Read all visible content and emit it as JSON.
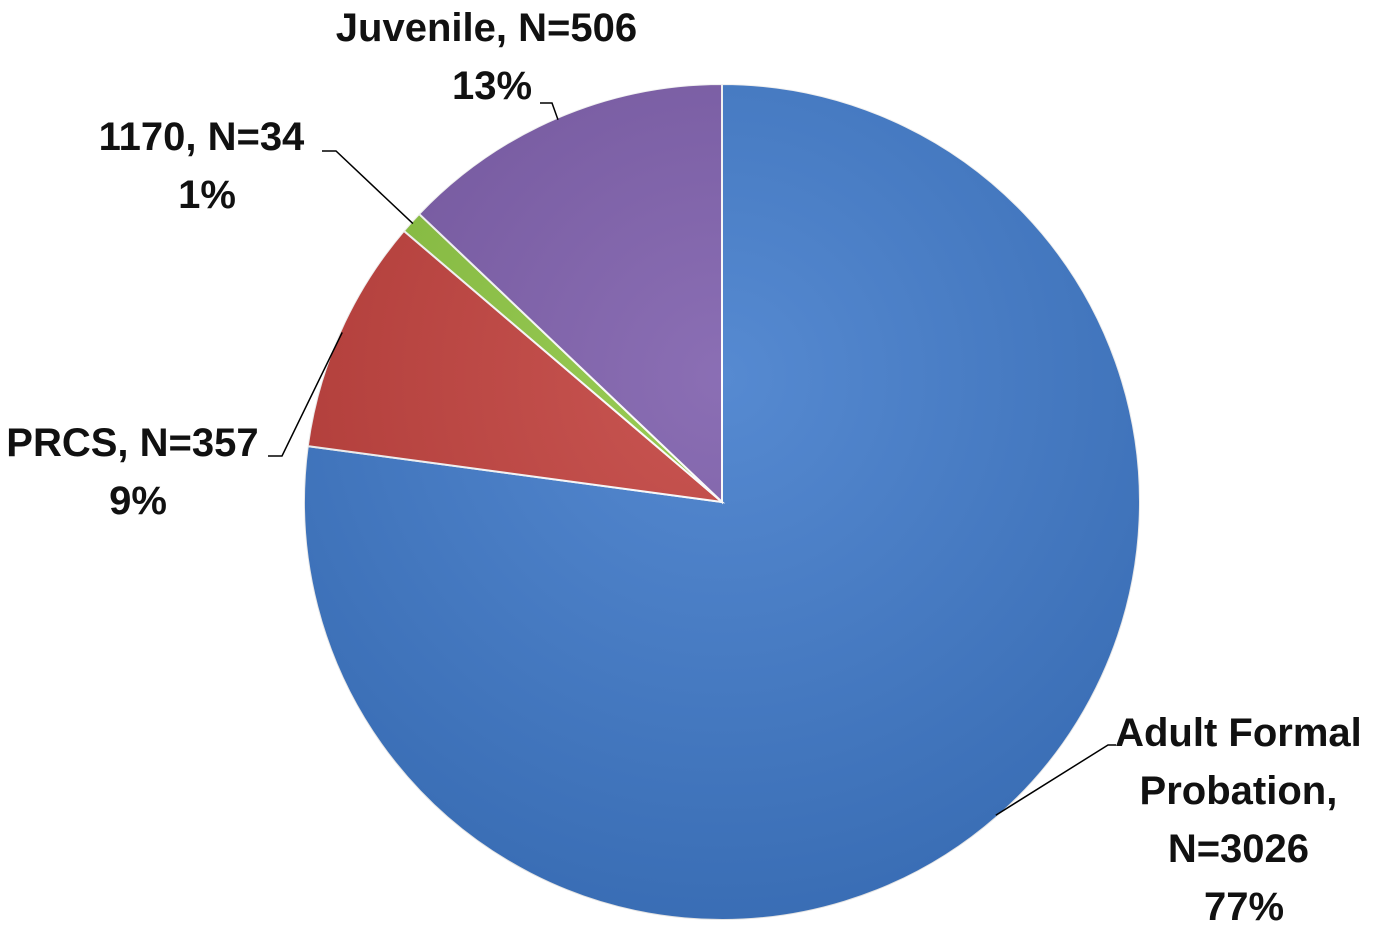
{
  "chart_data": {
    "type": "pie",
    "title": "",
    "start_angle_deg": 0,
    "direction": "clockwise",
    "slices": [
      {
        "name": "Adult Formal Probation",
        "n": 3026,
        "percent": 77,
        "color": "#3F7ACB",
        "label_lines": [
          "Adult Formal",
          "Probation,",
          "N=3026",
          "77%"
        ]
      },
      {
        "name": "PRCS",
        "n": 357,
        "percent": 9,
        "color": "#C23F3B",
        "label_lines": [
          "PRCS, N=357",
          "9%"
        ]
      },
      {
        "name": "1170",
        "n": 34,
        "percent": 1,
        "color": "#8CC63F",
        "label_lines": [
          "1170, N=34",
          "1%"
        ]
      },
      {
        "name": "Juvenile",
        "n": 506,
        "percent": 13,
        "color": "#7B5BAA",
        "label_lines": [
          "Juvenile, N=506",
          "13%"
        ]
      }
    ]
  }
}
